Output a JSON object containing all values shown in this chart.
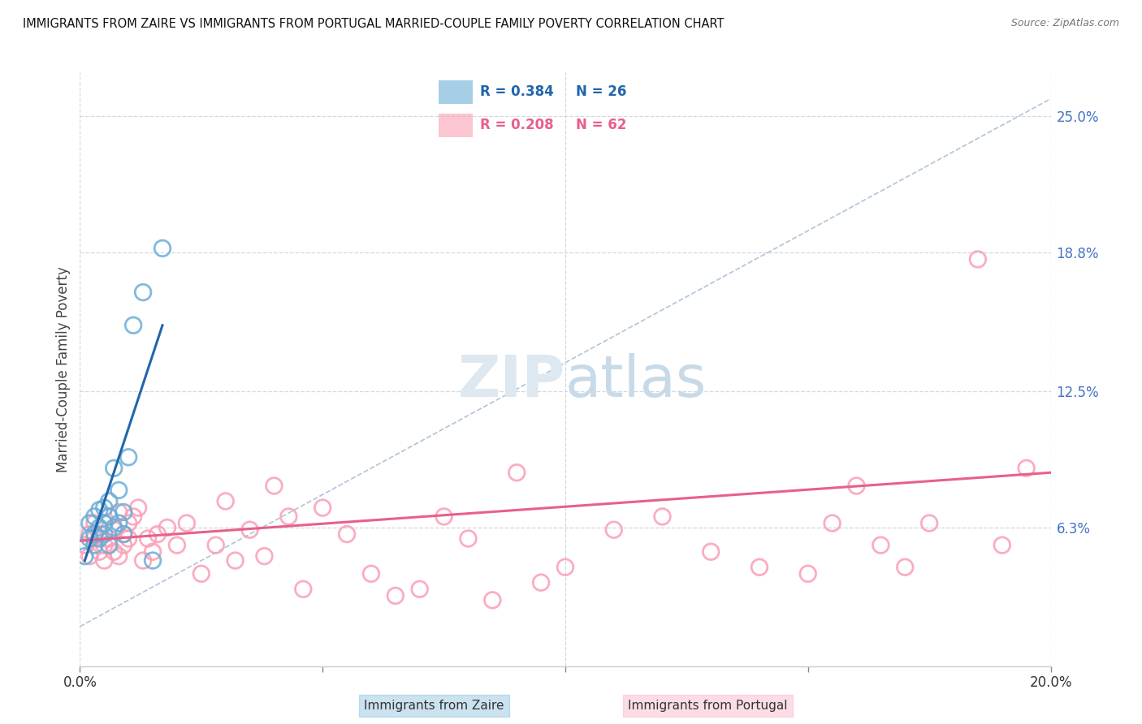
{
  "title": "IMMIGRANTS FROM ZAIRE VS IMMIGRANTS FROM PORTUGAL MARRIED-COUPLE FAMILY POVERTY CORRELATION CHART",
  "source": "Source: ZipAtlas.com",
  "ylabel": "Married-Couple Family Poverty",
  "xlim": [
    0.0,
    0.2
  ],
  "ylim": [
    0.0,
    0.27
  ],
  "x_ticks": [
    0.0,
    0.05,
    0.1,
    0.15,
    0.2
  ],
  "x_tick_labels": [
    "0.0%",
    "",
    "",
    "",
    "20.0%"
  ],
  "y_tick_labels": [
    "25.0%",
    "18.8%",
    "12.5%",
    "6.3%"
  ],
  "y_tick_values": [
    0.25,
    0.188,
    0.125,
    0.063
  ],
  "zaire_R": 0.384,
  "zaire_N": 26,
  "portugal_R": 0.208,
  "portugal_N": 62,
  "zaire_color": "#6baed6",
  "portugal_color": "#fa9fb5",
  "zaire_line_color": "#2166ac",
  "portugal_line_color": "#e8608a",
  "diagonal_color": "#b0c4d8",
  "background_color": "#ffffff",
  "grid_color": "#d0d8e4",
  "watermark_color": "#dde8f0",
  "zaire_points_x": [
    0.001,
    0.002,
    0.002,
    0.003,
    0.003,
    0.003,
    0.004,
    0.004,
    0.004,
    0.005,
    0.005,
    0.005,
    0.006,
    0.006,
    0.006,
    0.007,
    0.007,
    0.008,
    0.008,
    0.009,
    0.009,
    0.01,
    0.011,
    0.013,
    0.015,
    0.017
  ],
  "zaire_points_y": [
    0.05,
    0.058,
    0.065,
    0.06,
    0.068,
    0.055,
    0.063,
    0.071,
    0.058,
    0.065,
    0.072,
    0.06,
    0.068,
    0.075,
    0.055,
    0.063,
    0.09,
    0.065,
    0.08,
    0.07,
    0.06,
    0.095,
    0.155,
    0.17,
    0.048,
    0.19
  ],
  "portugal_points_x": [
    0.001,
    0.002,
    0.002,
    0.003,
    0.003,
    0.004,
    0.004,
    0.005,
    0.005,
    0.005,
    0.006,
    0.006,
    0.007,
    0.007,
    0.008,
    0.008,
    0.009,
    0.009,
    0.01,
    0.01,
    0.011,
    0.012,
    0.013,
    0.014,
    0.015,
    0.016,
    0.018,
    0.02,
    0.022,
    0.025,
    0.028,
    0.03,
    0.032,
    0.035,
    0.038,
    0.04,
    0.043,
    0.046,
    0.05,
    0.055,
    0.06,
    0.065,
    0.07,
    0.075,
    0.08,
    0.085,
    0.09,
    0.095,
    0.1,
    0.11,
    0.12,
    0.13,
    0.14,
    0.15,
    0.155,
    0.16,
    0.165,
    0.17,
    0.175,
    0.185,
    0.19,
    0.195
  ],
  "portugal_points_y": [
    0.055,
    0.06,
    0.05,
    0.058,
    0.065,
    0.052,
    0.06,
    0.055,
    0.065,
    0.048,
    0.058,
    0.068,
    0.052,
    0.062,
    0.05,
    0.07,
    0.06,
    0.055,
    0.065,
    0.058,
    0.068,
    0.072,
    0.048,
    0.058,
    0.052,
    0.06,
    0.063,
    0.055,
    0.065,
    0.042,
    0.055,
    0.075,
    0.048,
    0.062,
    0.05,
    0.082,
    0.068,
    0.035,
    0.072,
    0.06,
    0.042,
    0.032,
    0.035,
    0.068,
    0.058,
    0.03,
    0.088,
    0.038,
    0.045,
    0.062,
    0.068,
    0.052,
    0.045,
    0.042,
    0.065,
    0.082,
    0.055,
    0.045,
    0.065,
    0.185,
    0.055,
    0.09
  ],
  "zaire_line_x": [
    0.001,
    0.017
  ],
  "zaire_line_y": [
    0.048,
    0.155
  ],
  "portugal_line_x": [
    0.0,
    0.2
  ],
  "portugal_line_y": [
    0.057,
    0.088
  ],
  "diag_line_x": [
    0.0,
    0.2
  ],
  "diag_line_y": [
    0.018,
    0.258
  ]
}
